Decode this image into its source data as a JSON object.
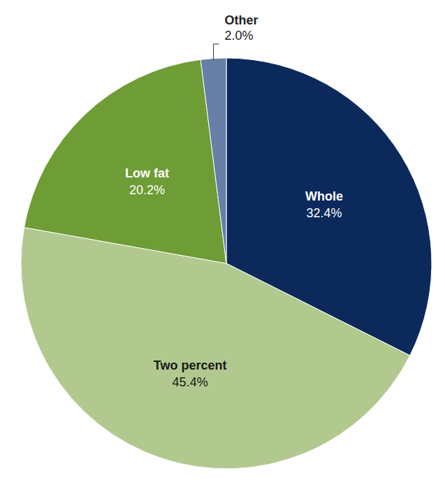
{
  "chart_data": {
    "type": "pie",
    "categories": [
      "Whole",
      "Two percent",
      "Low fat",
      "Other"
    ],
    "values": [
      32.4,
      45.4,
      20.2,
      2.0
    ],
    "value_labels": [
      "32.4%",
      "45.4%",
      "20.2%",
      "2.0%"
    ],
    "colors": [
      "#0b2a5b",
      "#b1c98f",
      "#6e9c35",
      "#687fa8"
    ],
    "data_labels": true
  }
}
